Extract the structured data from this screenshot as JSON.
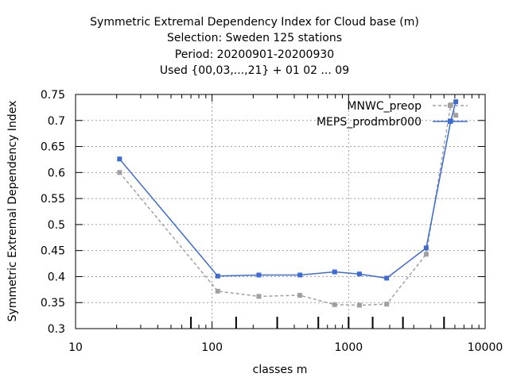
{
  "chart_data": {
    "type": "line",
    "title_lines": [
      "Symmetric Extremal Dependency Index  for Cloud base (m)",
      "Selection: Sweden    125 stations",
      "Period: 20200901-20200930",
      "Used {00,03,...,21} + 01 02 ... 09"
    ],
    "xlabel": "classes m",
    "ylabel": "Symmetric Extremal Dependency Index",
    "x_scale": "log",
    "xlim": [
      10,
      10000
    ],
    "ylim": [
      0.3,
      0.75
    ],
    "x_ticks": [
      10,
      100,
      1000,
      10000
    ],
    "x_tick_labels": [
      "10",
      "100",
      "1000",
      "10000"
    ],
    "y_ticks": [
      0.3,
      0.35,
      0.4,
      0.45,
      0.5,
      0.55,
      0.6,
      0.65,
      0.7,
      0.75
    ],
    "y_tick_labels": [
      "0.3",
      "0.35",
      "0.4",
      "0.45",
      "0.5",
      "0.55",
      "0.6",
      "0.65",
      "0.7",
      "0.75"
    ],
    "grid": true,
    "legend_position": "top-right",
    "class_markers": [
      70,
      150,
      300,
      600,
      1000,
      1500,
      2500,
      5000
    ],
    "series": [
      {
        "name": "MNWC_preop",
        "color": "#a0a0a0",
        "dash": true,
        "x": [
          21,
          110,
          220,
          440,
          790,
          1200,
          1900,
          3700,
          5600,
          6100
        ],
        "y": [
          0.6,
          0.372,
          0.362,
          0.364,
          0.346,
          0.345,
          0.347,
          0.443,
          0.73,
          0.71
        ]
      },
      {
        "name": "MEPS_prodmbr000",
        "color": "#3c6bd1",
        "dash": false,
        "x": [
          21,
          110,
          220,
          440,
          790,
          1200,
          1900,
          3700,
          5600,
          6100
        ],
        "y": [
          0.626,
          0.401,
          0.403,
          0.403,
          0.409,
          0.405,
          0.397,
          0.455,
          0.699,
          0.736
        ]
      }
    ]
  }
}
